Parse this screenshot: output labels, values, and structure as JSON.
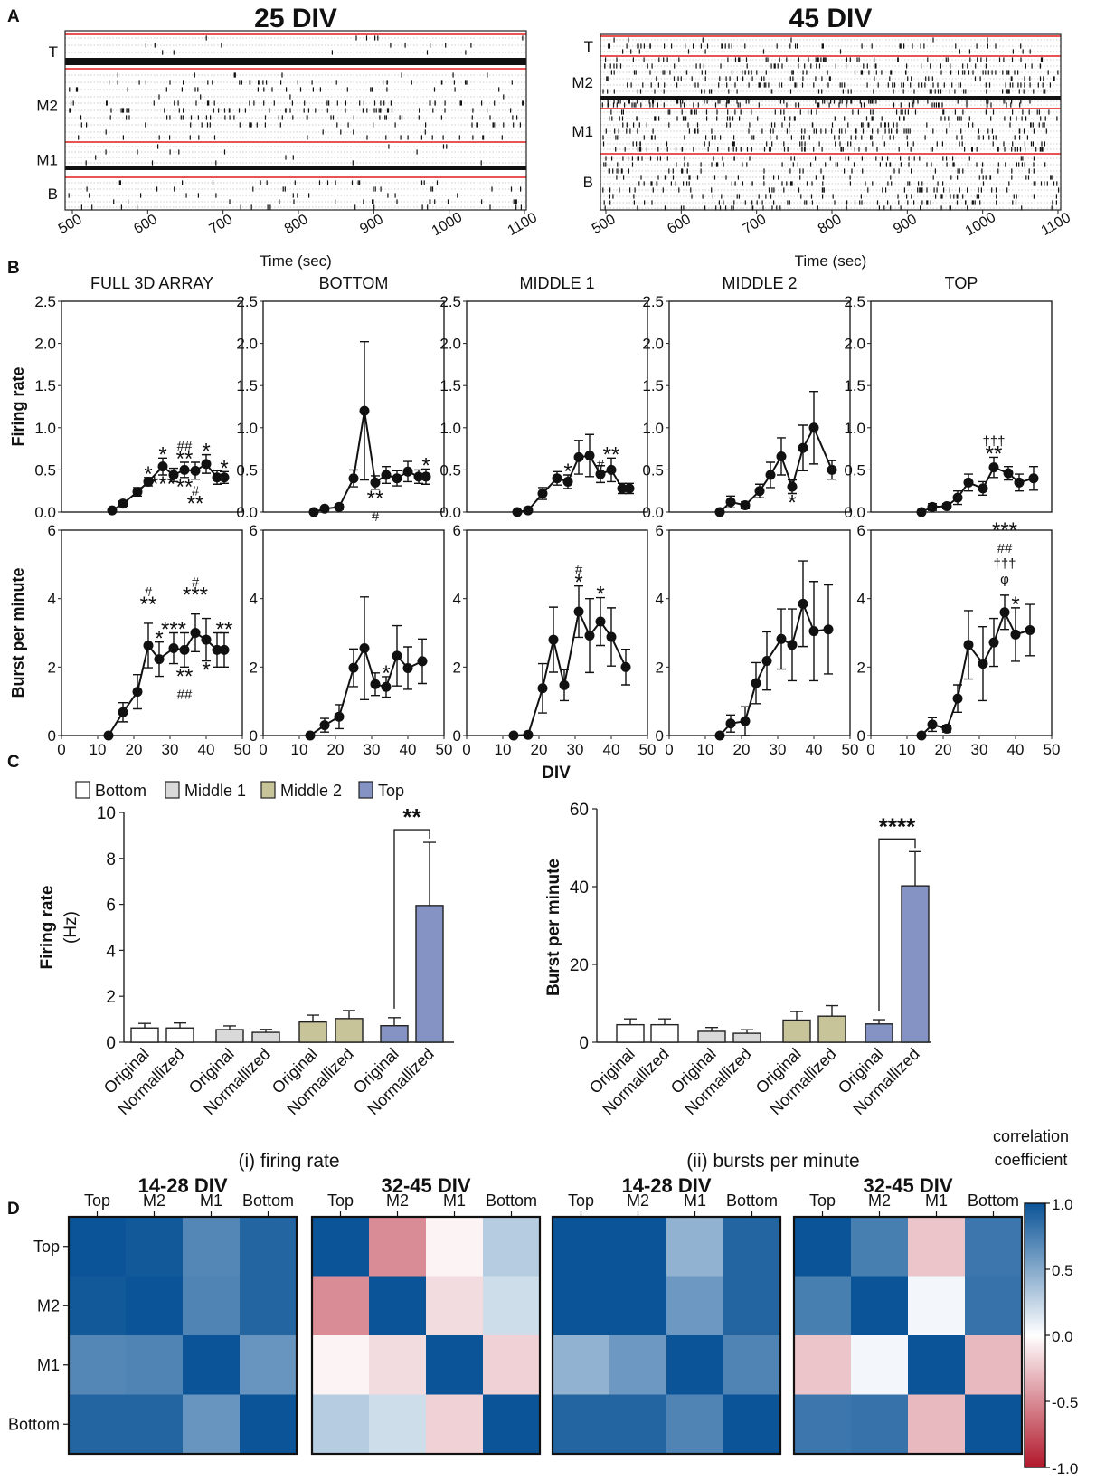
{
  "panel_letters": [
    "A",
    "B",
    "C",
    "D"
  ],
  "panel_a": {
    "rasters": [
      {
        "title": "25 DIV",
        "layers": [
          "T",
          "M2",
          "M1",
          "B"
        ],
        "x_ticks": [
          "500",
          "600",
          "700",
          "800",
          "900",
          "1000",
          "1100"
        ],
        "xlabel": "Time (sec)"
      },
      {
        "title": "45 DIV",
        "layers": [
          "T",
          "M2",
          "M1",
          "B"
        ],
        "x_ticks": [
          "500",
          "600",
          "700",
          "800",
          "900",
          "1000",
          "1100"
        ],
        "xlabel": "Time (sec)"
      }
    ]
  },
  "panel_b": {
    "shared_xlabel": "DIV",
    "x_ticks": [
      "0",
      "10",
      "20",
      "30",
      "40",
      "50"
    ],
    "row_ylabels": [
      "Firing rate",
      "Burst per minute"
    ],
    "fr_ticks": [
      "0.0",
      "0.5",
      "1.0",
      "1.5",
      "2.0",
      "2.5"
    ],
    "bpm_ticks": [
      "0",
      "2",
      "4",
      "6"
    ],
    "column_titles": [
      "FULL 3D ARRAY",
      "BOTTOM",
      "MIDDLE 1",
      "MIDDLE 2",
      "TOP"
    ]
  },
  "panel_c": {
    "legend": [
      "Bottom",
      "Middle 1",
      "Middle 2",
      "Top"
    ],
    "colors": {
      "Bottom": "#ffffff",
      "Middle 1": "#d9d9d9",
      "Middle 2": "#c8c49a",
      "Top": "#8493c4"
    },
    "bar_labels": [
      "Original",
      "Normallized"
    ],
    "captions": [
      "(i) firing rate",
      "(ii) bursts per minute"
    ],
    "ylabel_left": "Firing rate",
    "ylabel_left_unit": "(Hz)",
    "ylabel_right": "Burst per minute",
    "left_ticks": [
      "0",
      "2",
      "4",
      "6",
      "8",
      "10"
    ],
    "right_ticks": [
      "0",
      "20",
      "40",
      "60"
    ],
    "sig_left": "**",
    "sig_right": "****"
  },
  "panel_d": {
    "colorbar_title": [
      "correlation",
      "coefficient"
    ],
    "colorbar_ticks": [
      "1.0",
      "0.5",
      "0.0",
      "-0.5",
      "-1.0"
    ],
    "groups": [
      "(i) firing rate",
      "(ii) bursts per minute"
    ]
  },
  "chart_data": [
    {
      "type": "line",
      "panel": "B",
      "metric": "Firing rate",
      "title": "FULL 3D ARRAY",
      "ylim": [
        0,
        2.5
      ],
      "xlim": [
        0,
        50
      ],
      "x": [
        14,
        17,
        21,
        24,
        28,
        31,
        34,
        37,
        40,
        43,
        45
      ],
      "y": [
        0.02,
        0.1,
        0.24,
        0.36,
        0.54,
        0.44,
        0.5,
        0.49,
        0.57,
        0.41,
        0.41
      ],
      "err": [
        0.02,
        0.03,
        0.05,
        0.05,
        0.1,
        0.08,
        0.09,
        0.1,
        0.11,
        0.08,
        0.07
      ],
      "annotations": [
        {
          "x": 24,
          "label": "*",
          "pos": "above"
        },
        {
          "x": 28,
          "label": "*",
          "pos": "above"
        },
        {
          "x": 34,
          "label": "**",
          "pos": "above"
        },
        {
          "x": 34,
          "label": "##",
          "pos": "above2"
        },
        {
          "x": 40,
          "label": "*",
          "pos": "above"
        },
        {
          "x": 45,
          "label": "*",
          "pos": "above"
        },
        {
          "x": 28,
          "label": "***",
          "pos": "below"
        },
        {
          "x": 34,
          "label": "**",
          "pos": "below"
        },
        {
          "x": 37,
          "label": "#",
          "pos": "below"
        },
        {
          "x": 37,
          "label": "**",
          "pos": "below2"
        }
      ]
    },
    {
      "type": "line",
      "panel": "B",
      "metric": "Firing rate",
      "title": "BOTTOM",
      "ylim": [
        0,
        2.5
      ],
      "xlim": [
        0,
        50
      ],
      "x": [
        14,
        17,
        21,
        25,
        28,
        31,
        34,
        37,
        40,
        43,
        45
      ],
      "y": [
        0.0,
        0.04,
        0.06,
        0.4,
        1.2,
        0.35,
        0.44,
        0.4,
        0.48,
        0.42,
        0.42
      ],
      "err": [
        0.01,
        0.02,
        0.03,
        0.1,
        0.82,
        0.08,
        0.1,
        0.09,
        0.12,
        0.08,
        0.09
      ],
      "annotations": [
        {
          "x": 45,
          "label": "*",
          "pos": "above"
        },
        {
          "x": 31,
          "label": "**",
          "pos": "below"
        },
        {
          "x": 31,
          "label": "#",
          "pos": "below2"
        }
      ]
    },
    {
      "type": "line",
      "panel": "B",
      "metric": "Firing rate",
      "title": "MIDDLE 1",
      "ylim": [
        0,
        2.5
      ],
      "xlim": [
        0,
        50
      ],
      "x": [
        14,
        17,
        21,
        25,
        28,
        31,
        34,
        37,
        40,
        43,
        45
      ],
      "y": [
        0.0,
        0.02,
        0.22,
        0.4,
        0.36,
        0.65,
        0.67,
        0.45,
        0.5,
        0.28,
        0.28
      ],
      "err": [
        0.01,
        0.02,
        0.07,
        0.08,
        0.08,
        0.2,
        0.25,
        0.1,
        0.14,
        0.06,
        0.06
      ],
      "annotations": [
        {
          "x": 28,
          "label": "*",
          "pos": "above"
        },
        {
          "x": 37,
          "label": "#",
          "pos": "above"
        },
        {
          "x": 40,
          "label": "**",
          "pos": "above"
        }
      ]
    },
    {
      "type": "line",
      "panel": "B",
      "metric": "Firing rate",
      "title": "MIDDLE 2",
      "ylim": [
        0,
        2.5
      ],
      "xlim": [
        0,
        50
      ],
      "x": [
        14,
        17,
        21,
        25,
        28,
        31,
        34,
        37,
        40,
        45
      ],
      "y": [
        0.0,
        0.12,
        0.08,
        0.25,
        0.44,
        0.66,
        0.3,
        0.76,
        1.0,
        0.5
      ],
      "err": [
        0.01,
        0.07,
        0.04,
        0.08,
        0.15,
        0.22,
        0.08,
        0.27,
        0.43,
        0.11
      ],
      "annotations": [
        {
          "x": 34,
          "label": "*",
          "pos": "below"
        }
      ]
    },
    {
      "type": "line",
      "panel": "B",
      "metric": "Firing rate",
      "title": "TOP",
      "ylim": [
        0,
        2.5
      ],
      "xlim": [
        0,
        50
      ],
      "x": [
        14,
        17,
        21,
        24,
        27,
        31,
        34,
        38,
        41,
        45
      ],
      "y": [
        0.0,
        0.06,
        0.07,
        0.17,
        0.35,
        0.28,
        0.53,
        0.46,
        0.35,
        0.4
      ],
      "err": [
        0.01,
        0.04,
        0.03,
        0.08,
        0.1,
        0.08,
        0.12,
        0.08,
        0.1,
        0.14
      ],
      "annotations": [
        {
          "x": 34,
          "label": "**",
          "pos": "above"
        },
        {
          "x": 34,
          "label": "†††",
          "pos": "above2"
        }
      ]
    },
    {
      "type": "line",
      "panel": "B",
      "metric": "Burst per minute",
      "title": "FULL 3D ARRAY",
      "ylim": [
        0,
        6
      ],
      "xlim": [
        0,
        50
      ],
      "x": [
        13,
        17,
        21,
        24,
        27,
        31,
        34,
        37,
        40,
        43,
        45
      ],
      "y": [
        0.0,
        0.68,
        1.28,
        2.63,
        2.23,
        2.55,
        2.5,
        3.0,
        2.8,
        2.5,
        2.5
      ],
      "err": [
        0.01,
        0.28,
        0.5,
        0.65,
        0.5,
        0.45,
        0.5,
        0.55,
        0.62,
        0.5,
        0.5
      ],
      "annotations": [
        {
          "x": 24,
          "label": "#",
          "pos": "above3"
        },
        {
          "x": 24,
          "label": "**",
          "pos": "above2"
        },
        {
          "x": 28,
          "label": "*",
          "pos": "above"
        },
        {
          "x": 31,
          "label": "***",
          "pos": "above"
        },
        {
          "x": 37,
          "label": "#",
          "pos": "above3"
        },
        {
          "x": 37,
          "label": "***",
          "pos": "above2"
        },
        {
          "x": 45,
          "label": "**",
          "pos": "above"
        },
        {
          "x": 34,
          "label": "**",
          "pos": "below"
        },
        {
          "x": 34,
          "label": "##",
          "pos": "below2"
        },
        {
          "x": 41,
          "label": "*",
          "pos": "below"
        }
      ]
    },
    {
      "type": "line",
      "panel": "B",
      "metric": "Burst per minute",
      "title": "BOTTOM",
      "ylim": [
        0,
        6
      ],
      "xlim": [
        0,
        50
      ],
      "x": [
        13,
        17,
        21,
        25,
        28,
        31,
        34,
        37,
        40,
        44
      ],
      "y": [
        0.0,
        0.3,
        0.55,
        1.98,
        2.55,
        1.5,
        1.42,
        2.33,
        1.97,
        2.17
      ],
      "err": [
        0.01,
        0.2,
        0.35,
        0.55,
        1.5,
        0.33,
        0.3,
        0.88,
        0.62,
        0.65
      ],
      "annotations": [
        {
          "x": 34,
          "label": "*",
          "pos": "above"
        }
      ]
    },
    {
      "type": "line",
      "panel": "B",
      "metric": "Burst per minute",
      "title": "MIDDLE 1",
      "ylim": [
        0,
        6
      ],
      "xlim": [
        0,
        50
      ],
      "x": [
        13,
        17,
        21,
        24,
        27,
        31,
        34,
        37,
        40,
        44
      ],
      "y": [
        0.0,
        0.02,
        1.38,
        2.8,
        1.47,
        3.62,
        2.92,
        3.33,
        2.88,
        2.0
      ],
      "err": [
        0.01,
        0.01,
        0.72,
        0.95,
        0.45,
        0.75,
        1.08,
        0.7,
        0.85,
        0.52
      ],
      "annotations": [
        {
          "x": 31,
          "label": "*",
          "pos": "above"
        },
        {
          "x": 31,
          "label": "#",
          "pos": "above2"
        },
        {
          "x": 37,
          "label": "*",
          "pos": "above"
        }
      ]
    },
    {
      "type": "line",
      "panel": "B",
      "metric": "Burst per minute",
      "title": "MIDDLE 2",
      "ylim": [
        0,
        6
      ],
      "xlim": [
        0,
        50
      ],
      "x": [
        14,
        17,
        21,
        24,
        27,
        31,
        34,
        37,
        40,
        44
      ],
      "y": [
        0.0,
        0.35,
        0.42,
        1.53,
        2.18,
        2.82,
        2.65,
        3.85,
        3.05,
        3.1
      ],
      "err": [
        0.01,
        0.25,
        0.42,
        0.6,
        0.85,
        0.88,
        1.05,
        1.25,
        1.45,
        1.3
      ],
      "annotations": []
    },
    {
      "type": "line",
      "panel": "B",
      "metric": "Burst per minute",
      "title": "TOP",
      "ylim": [
        0,
        6
      ],
      "xlim": [
        0,
        50
      ],
      "x": [
        14,
        17,
        21,
        24,
        27,
        31,
        34,
        37,
        40,
        44
      ],
      "y": [
        0.0,
        0.32,
        0.2,
        1.08,
        2.65,
        2.1,
        2.72,
        3.6,
        2.95,
        3.08
      ],
      "err": [
        0.01,
        0.2,
        0.1,
        0.4,
        1.0,
        1.08,
        0.7,
        0.5,
        0.78,
        0.75
      ],
      "annotations": [
        {
          "x": 37,
          "label": "***",
          "pos": "above5"
        },
        {
          "x": 37,
          "label": "##",
          "pos": "above4"
        },
        {
          "x": 37,
          "label": "†††",
          "pos": "above3"
        },
        {
          "x": 37,
          "label": "φ",
          "pos": "above2"
        },
        {
          "x": 41,
          "label": "*",
          "pos": "above"
        }
      ]
    },
    {
      "type": "bar",
      "panel": "C",
      "title": "(i) firing rate",
      "ylabel": "Firing rate (Hz)",
      "ylim": [
        0,
        10
      ],
      "categories": [
        "Bottom Original",
        "Bottom Normallized",
        "Middle 1 Original",
        "Middle 1 Normallized",
        "Middle 2 Original",
        "Middle 2 Normallized",
        "Top Original",
        "Top Normallized"
      ],
      "groups": [
        "Bottom",
        "Bottom",
        "Middle 1",
        "Middle 1",
        "Middle 2",
        "Middle 2",
        "Top",
        "Top"
      ],
      "values": [
        0.62,
        0.62,
        0.55,
        0.43,
        0.88,
        1.03,
        0.72,
        5.95
      ],
      "err": [
        0.2,
        0.22,
        0.16,
        0.13,
        0.3,
        0.35,
        0.35,
        2.75
      ],
      "significance": {
        "between": [
          6,
          7
        ],
        "label": "**"
      }
    },
    {
      "type": "bar",
      "panel": "C",
      "title": "(ii) bursts per minute",
      "ylabel": "Burst per minute",
      "ylim": [
        0,
        60
      ],
      "categories": [
        "Bottom Original",
        "Bottom Normallized",
        "Middle 1 Original",
        "Middle 1 Normallized",
        "Middle 2 Original",
        "Middle 2 Normallized",
        "Top Original",
        "Top Normallized"
      ],
      "groups": [
        "Bottom",
        "Bottom",
        "Middle 1",
        "Middle 1",
        "Middle 2",
        "Middle 2",
        "Top",
        "Top"
      ],
      "values": [
        4.5,
        4.5,
        2.8,
        2.3,
        5.7,
        6.7,
        4.7,
        40.2
      ],
      "err": [
        1.5,
        1.5,
        1.0,
        0.9,
        2.2,
        2.7,
        1.1,
        8.8
      ],
      "significance": {
        "between": [
          6,
          7
        ],
        "label": "****"
      }
    },
    {
      "type": "heatmap",
      "panel": "D",
      "group": "(i) firing rate",
      "title": "14-28 DIV",
      "labels": [
        "Top",
        "M2",
        "M1",
        "Bottom"
      ],
      "values": [
        [
          1.0,
          0.97,
          0.7,
          0.9
        ],
        [
          0.97,
          1.0,
          0.72,
          0.9
        ],
        [
          0.7,
          0.72,
          1.0,
          0.62
        ],
        [
          0.9,
          0.9,
          0.62,
          1.0
        ]
      ]
    },
    {
      "type": "heatmap",
      "panel": "D",
      "group": "(i) firing rate",
      "title": "32-45 DIV",
      "labels": [
        "Top",
        "M2",
        "M1",
        "Bottom"
      ],
      "values": [
        [
          1.0,
          -0.5,
          -0.05,
          0.3
        ],
        [
          -0.5,
          1.0,
          -0.15,
          0.2
        ],
        [
          -0.05,
          -0.15,
          1.0,
          -0.2
        ],
        [
          0.3,
          0.2,
          -0.2,
          1.0
        ]
      ]
    },
    {
      "type": "heatmap",
      "panel": "D",
      "group": "(ii) bursts per minute",
      "title": "14-28 DIV",
      "labels": [
        "Top",
        "M2",
        "M1",
        "Bottom"
      ],
      "values": [
        [
          1.0,
          1.0,
          0.45,
          0.9
        ],
        [
          1.0,
          1.0,
          0.6,
          0.9
        ],
        [
          0.45,
          0.6,
          1.0,
          0.72
        ],
        [
          0.9,
          0.9,
          0.72,
          1.0
        ]
      ]
    },
    {
      "type": "heatmap",
      "panel": "D",
      "group": "(ii) bursts per minute",
      "title": "32-45 DIV",
      "labels": [
        "Top",
        "M2",
        "M1",
        "Bottom"
      ],
      "values": [
        [
          1.0,
          0.75,
          -0.25,
          0.8
        ],
        [
          0.75,
          1.0,
          0.05,
          0.82
        ],
        [
          -0.25,
          0.05,
          1.0,
          -0.3
        ],
        [
          0.8,
          0.82,
          -0.3,
          1.0
        ]
      ]
    }
  ]
}
